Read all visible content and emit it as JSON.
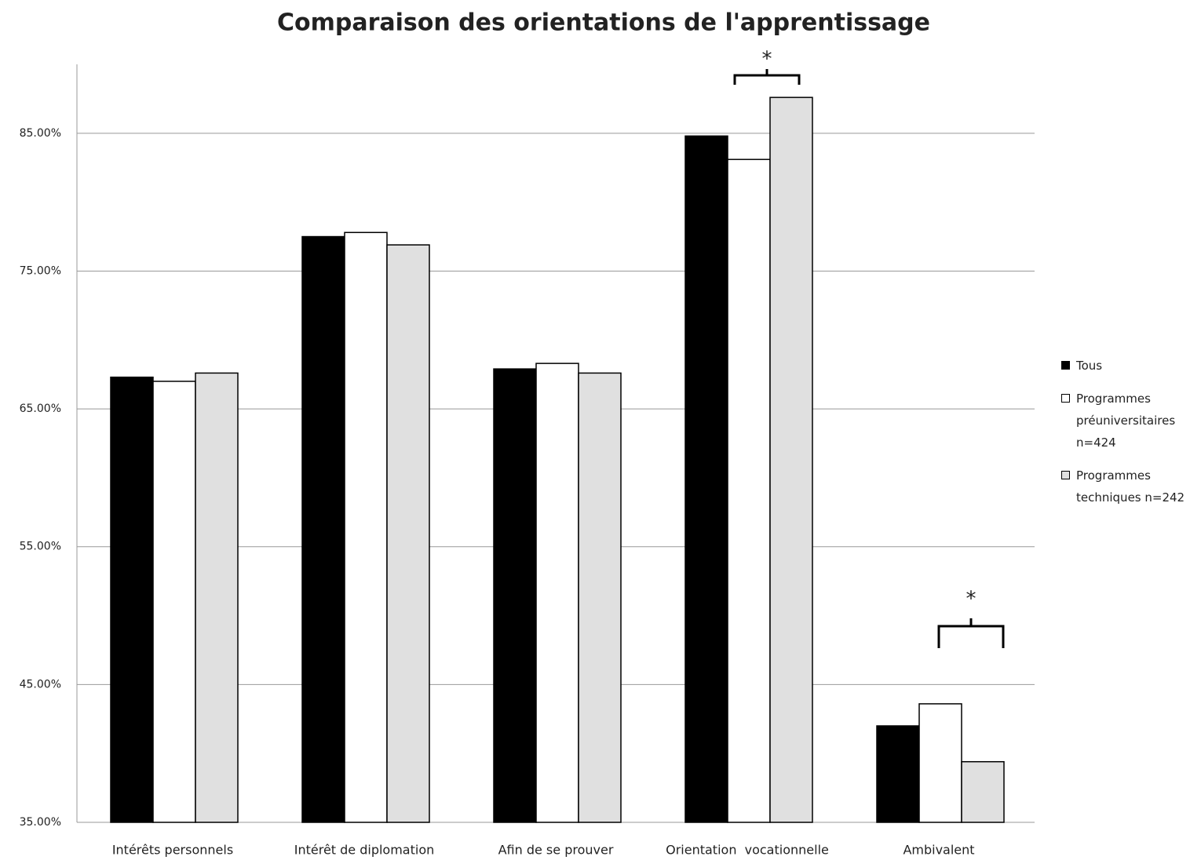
{
  "chart_data": {
    "type": "bar",
    "title": "Comparaison des orientations de l'apprentissage",
    "categories": [
      "Intérêts personnels",
      "Intérêt de diplomation",
      "Afin de se prouver",
      "Orientation  vocationnelle",
      "Ambivalent"
    ],
    "series": [
      {
        "name": "Tous",
        "color": "#000000",
        "values": [
          67.3,
          77.5,
          67.9,
          84.8,
          42.0
        ]
      },
      {
        "name": "Programmes préuniversitaires n=424",
        "color": "#ffffff",
        "values": [
          67.0,
          77.8,
          68.3,
          83.1,
          43.6
        ]
      },
      {
        "name": "Programmes techniques n=242",
        "color": "#e0e0e0",
        "values": [
          67.6,
          76.9,
          67.6,
          87.6,
          39.4
        ]
      }
    ],
    "ylim": [
      35,
      90
    ],
    "yticks": [
      {
        "value": 35,
        "label": "35.00%"
      },
      {
        "value": 45,
        "label": "45.00%"
      },
      {
        "value": 55,
        "label": "55.00%"
      },
      {
        "value": 65,
        "label": "65.00%"
      },
      {
        "value": 75,
        "label": "75.00%"
      },
      {
        "value": 85,
        "label": "85.00%"
      }
    ],
    "grid": true,
    "legend": "right",
    "annotations": [
      "*",
      "*"
    ]
  }
}
